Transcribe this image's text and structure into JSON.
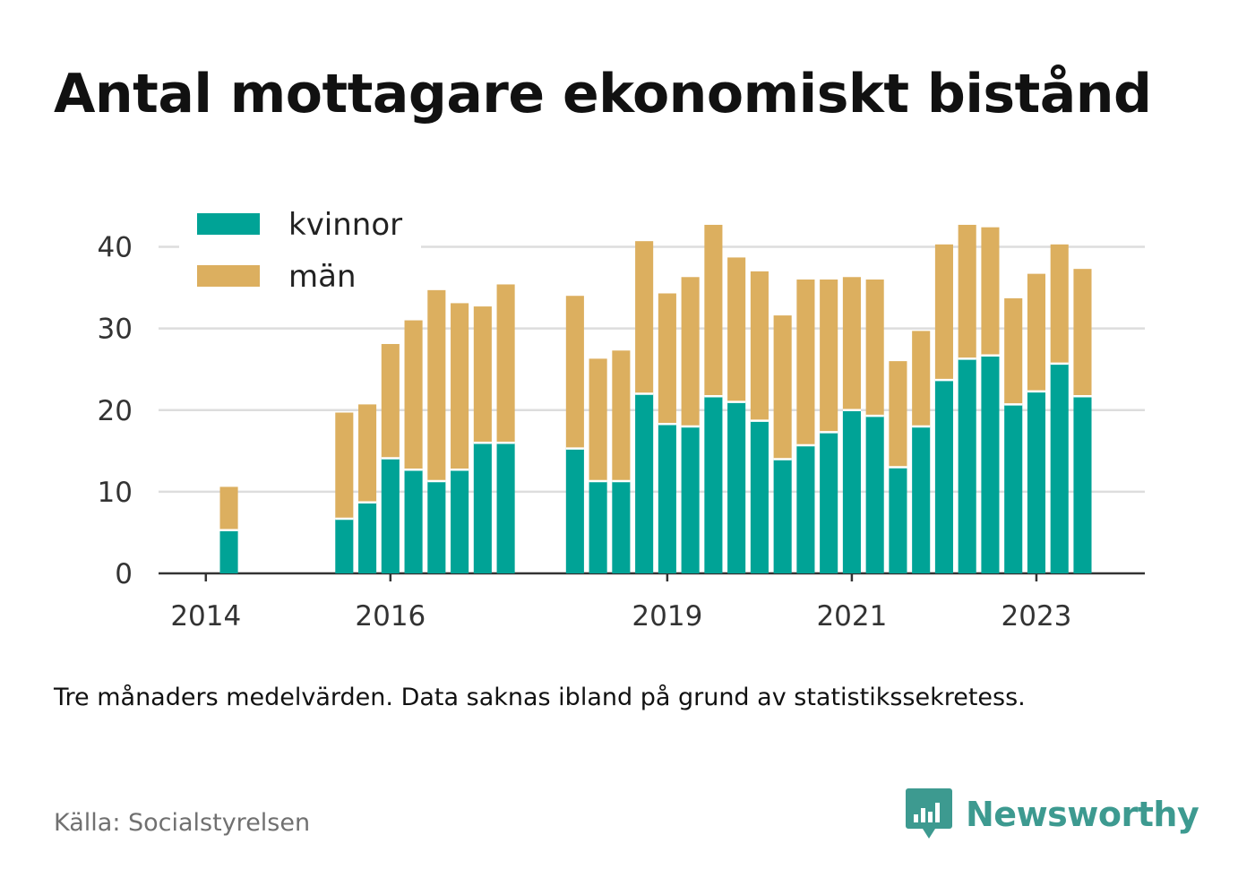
{
  "title": "Antal mottagare ekonomiskt bistånd",
  "note": "Tre månaders medelvärden. Data saknas ibland på grund av statistikssekretess.",
  "source": "Källa: Socialstyrelsen",
  "brand": {
    "name": "Newsworthy",
    "icon": "newsworthy-logo-icon",
    "color": "#3d9a90"
  },
  "chart_data": {
    "type": "bar",
    "stacked": true,
    "x_tick_labels": [
      {
        "label": "2014",
        "index": 0
      },
      {
        "label": "2016",
        "index": 8
      },
      {
        "label": "2019",
        "index": 20
      },
      {
        "label": "2021",
        "index": 28
      },
      {
        "label": "2023",
        "index": 36
      }
    ],
    "n_slots": 42,
    "x_range": [
      -2.05,
      40.7
    ],
    "ylim": [
      0,
      45
    ],
    "y_ticks": [
      0,
      10,
      20,
      30,
      40
    ],
    "grid": true,
    "legend_position": "top-left",
    "series": [
      {
        "name": "kvinnor",
        "color": "#00a396",
        "values": [
          null,
          5.3,
          null,
          null,
          null,
          null,
          6.7,
          8.7,
          14.1,
          12.7,
          11.3,
          12.7,
          16.0,
          16.0,
          null,
          null,
          15.3,
          11.3,
          11.3,
          22.0,
          18.3,
          18.0,
          21.7,
          21.0,
          18.7,
          14.0,
          15.7,
          17.3,
          20.0,
          19.3,
          13.0,
          18.0,
          23.7,
          26.3,
          26.7,
          20.7,
          22.3,
          25.7,
          21.7
        ]
      },
      {
        "name": "män",
        "color": "#dcaf5f",
        "values": [
          null,
          5.3,
          null,
          null,
          null,
          null,
          13.0,
          12.0,
          14.0,
          18.3,
          23.4,
          20.4,
          16.7,
          19.4,
          null,
          null,
          18.7,
          15.0,
          16.0,
          18.7,
          16.0,
          18.3,
          21.0,
          17.7,
          18.3,
          17.6,
          20.3,
          18.7,
          16.3,
          16.7,
          13.0,
          11.7,
          16.6,
          16.4,
          15.7,
          13.0,
          14.4,
          14.6,
          15.6
        ]
      }
    ]
  }
}
